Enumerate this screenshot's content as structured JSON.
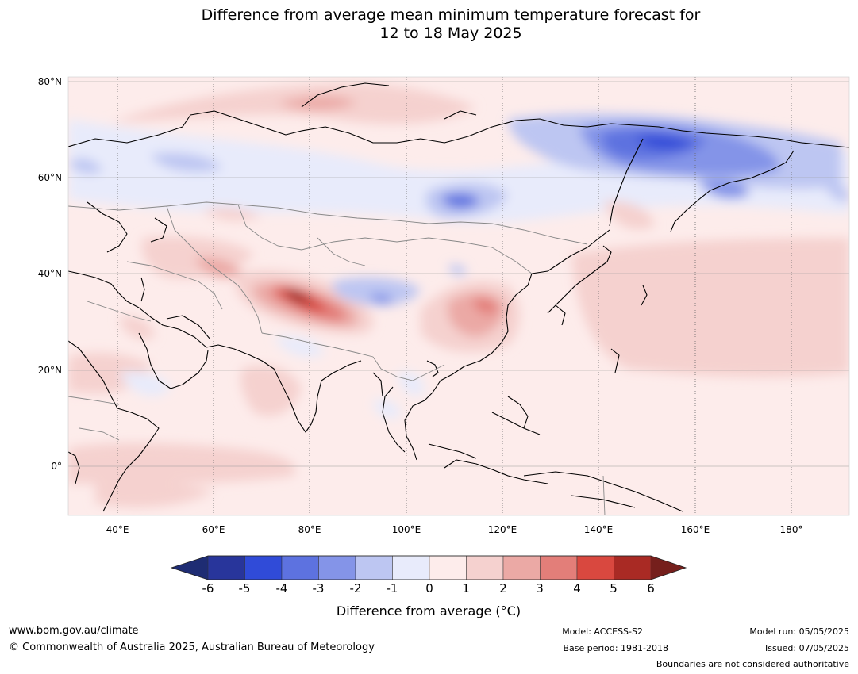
{
  "title": {
    "line1": "Difference from average mean minimum temperature forecast for",
    "line2": "12 to 18 May 2025"
  },
  "map": {
    "lat_labels": [
      "80°N",
      "60°N",
      "40°N",
      "20°N",
      "0°"
    ],
    "lon_labels": [
      "40°E",
      "60°E",
      "80°E",
      "100°E",
      "120°E",
      "140°E",
      "160°E",
      "180°"
    ]
  },
  "colorbar": {
    "ticks": [
      "-6",
      "-5",
      "-4",
      "-3",
      "-2",
      "-1",
      "0",
      "1",
      "2",
      "3",
      "4",
      "5",
      "6"
    ],
    "colors": [
      "#28359b",
      "#304bd8",
      "#5d72e0",
      "#8494e8",
      "#bdc6f2",
      "#e8ebfb",
      "#fdeceb",
      "#f5d1cf",
      "#eba9a5",
      "#e37e79",
      "#d9483f",
      "#a92a24"
    ],
    "under_color": "#1e2c73",
    "over_color": "#751f1c",
    "label": "Difference from average (°C)"
  },
  "footer": {
    "url": "www.bom.gov.au/climate",
    "copyright": "© Commonwealth of Australia 2025, Australian Bureau of Meteorology",
    "model": "Model: ACCESS-S2",
    "base_period": "Base period: 1981-2018",
    "model_run": "Model run: 05/05/2025",
    "issued": "Issued: 07/05/2025",
    "disclaimer": "Boundaries are not considered authoritative"
  }
}
